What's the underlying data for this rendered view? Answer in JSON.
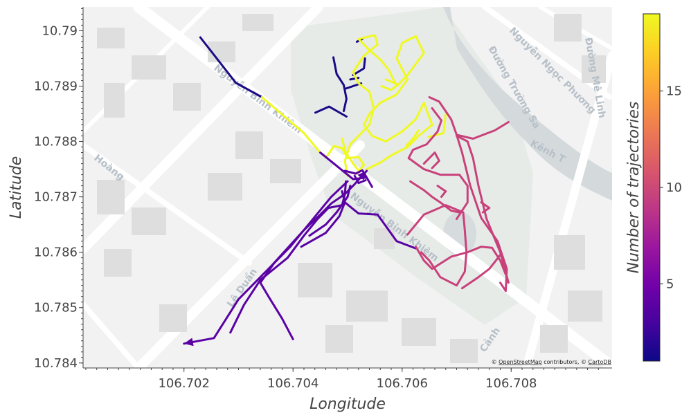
{
  "axes": {
    "xlabel": "Longitude",
    "ylabel": "Latitude",
    "xticks": [
      "106.702",
      "106.704",
      "106.706",
      "106.708"
    ],
    "yticks": [
      "10.784",
      "10.785",
      "10.786",
      "10.787",
      "10.788",
      "10.789",
      "10.79"
    ],
    "xlim": [
      106.70015,
      106.70985
    ],
    "ylim": [
      10.78391,
      10.79043
    ]
  },
  "colorbar": {
    "title": "Number of trajectories",
    "ticks": [
      "5",
      "10",
      "15"
    ],
    "min": 1,
    "max": 19
  },
  "attribution": {
    "prefix": "© ",
    "osm": "OpenStreetMap",
    "middle": " contributors, © ",
    "carto": "CartoDB"
  },
  "street_labels": [
    {
      "text": "Nguyễn Bỉnh Khiêm"
    },
    {
      "text": "Nguyễn Bỉnh Khiêm"
    },
    {
      "text": "Nguyễn Ngọc Phương"
    },
    {
      "text": "Đường Trường Sa"
    },
    {
      "text": "Đường Mê Linh"
    },
    {
      "text": "Kênh T"
    },
    {
      "text": "Lê Duẩn"
    },
    {
      "text": "Hoàng"
    },
    {
      "text": "Cảnh"
    }
  ],
  "colors": {
    "dark_blue": "#1a0a86",
    "purple": "#5a02a3",
    "pink": "#c8417a",
    "yellow": "#f0f921",
    "map_bg": "#f2f2f2",
    "park": "#e6ebe8",
    "water": "#d4dadc",
    "road": "#ffffff",
    "building": "#dedede"
  },
  "chart_data": {
    "type": "line",
    "title": "",
    "xlabel": "Longitude",
    "ylabel": "Latitude",
    "xlim": [
      106.70015,
      106.70985
    ],
    "ylim": [
      10.78391,
      10.79043
    ],
    "colorbar_label": "Number of trajectories",
    "series": [
      {
        "color": "#1a0a86",
        "arrow": false,
        "points": [
          [
            106.7023,
            10.78988
          ],
          [
            106.70295,
            10.78906
          ],
          [
            106.70343,
            10.7888
          ]
        ]
      },
      {
        "color": "#1a0a86",
        "arrow": false,
        "points": [
          [
            106.70474,
            10.78952
          ],
          [
            106.7048,
            10.78922
          ],
          [
            106.70493,
            10.78902
          ],
          [
            106.70498,
            10.78877
          ],
          [
            106.70493,
            10.78855
          ]
        ]
      },
      {
        "color": "#1a0a86",
        "arrow": false,
        "points": [
          [
            106.70441,
            10.78852
          ],
          [
            106.70466,
            10.78863
          ],
          [
            106.70498,
            10.78845
          ]
        ]
      },
      {
        "color": "#1a0a86",
        "arrow": false,
        "points": [
          [
            106.70505,
            10.78912
          ],
          [
            106.7052,
            10.78915
          ]
        ]
      },
      {
        "color": "#1a0a86",
        "arrow": false,
        "points": [
          [
            106.70495,
            10.78895
          ],
          [
            106.70525,
            10.78905
          ]
        ]
      },
      {
        "color": "#1a0a86",
        "arrow": false,
        "points": [
          [
            106.7051,
            10.7892
          ],
          [
            106.7053,
            10.78932
          ],
          [
            106.70532,
            10.7895
          ]
        ]
      },
      {
        "color": "#1a0a86",
        "arrow": false,
        "points": [
          [
            106.70517,
            10.7898
          ],
          [
            106.70527,
            10.78985
          ]
        ]
      },
      {
        "color": "#f0f921",
        "arrow": false,
        "points": [
          [
            106.70343,
            10.7888
          ],
          [
            106.7042,
            10.78815
          ],
          [
            106.7045,
            10.7878
          ]
        ]
      },
      {
        "color": "#f0f921",
        "arrow": false,
        "points": [
          [
            106.705,
            10.78738
          ],
          [
            106.70495,
            10.78765
          ],
          [
            106.70505,
            10.78795
          ],
          [
            106.7052,
            10.7881
          ],
          [
            106.7054,
            10.7883
          ],
          [
            106.70548,
            10.7886
          ],
          [
            106.7054,
            10.7889
          ],
          [
            106.7052,
            10.78905
          ],
          [
            106.7051,
            10.78925
          ],
          [
            106.7053,
            10.78955
          ],
          [
            106.70555,
            10.78975
          ],
          [
            106.7055,
            10.78992
          ],
          [
            106.7052,
            10.78985
          ],
          [
            106.7054,
            10.78965
          ],
          [
            106.7056,
            10.78948
          ],
          [
            106.70575,
            10.7893
          ],
          [
            106.7059,
            10.789
          ],
          [
            106.7061,
            10.7892
          ],
          [
            106.7064,
            10.7896
          ],
          [
            106.70625,
            10.7899
          ],
          [
            106.706,
            10.78978
          ],
          [
            106.7059,
            10.7895
          ],
          [
            106.7061,
            10.78912
          ],
          [
            106.7059,
            10.78885
          ],
          [
            106.7056,
            10.7887
          ],
          [
            106.7054,
            10.7885
          ],
          [
            106.7053,
            10.7883
          ],
          [
            106.70545,
            10.7881
          ],
          [
            106.7057,
            10.788
          ],
          [
            106.706,
            10.78818
          ],
          [
            106.70625,
            10.7884
          ],
          [
            106.7064,
            10.7887
          ],
          [
            106.70655,
            10.7883
          ],
          [
            106.7063,
            10.7881
          ],
          [
            106.7061,
            10.7879
          ],
          [
            106.7058,
            10.78775
          ],
          [
            106.7056,
            10.78762
          ],
          [
            106.70535,
            10.7875
          ]
        ]
      },
      {
        "color": "#f0f921",
        "arrow": false,
        "points": [
          [
            106.7046,
            10.7877
          ],
          [
            106.70475,
            10.78792
          ],
          [
            106.7049,
            10.78788
          ],
          [
            106.705,
            10.7877
          ],
          [
            106.7052,
            10.78772
          ],
          [
            106.7053,
            10.78758
          ],
          [
            106.70517,
            10.78742
          ]
        ]
      },
      {
        "color": "#f0f921",
        "arrow": false,
        "points": [
          [
            106.7049,
            10.78805
          ],
          [
            106.70497,
            10.7878
          ],
          [
            106.7051,
            10.7876
          ],
          [
            106.7052,
            10.78748
          ]
        ]
      },
      {
        "color": "#f0f921",
        "arrow": false,
        "points": [
          [
            106.70608,
            10.78793
          ],
          [
            106.7062,
            10.78805
          ],
          [
            106.7063,
            10.7882
          ]
        ]
      },
      {
        "color": "#f0f921",
        "arrow": false,
        "points": [
          [
            106.7068,
            10.7885
          ],
          [
            106.70676,
            10.78815
          ],
          [
            106.70648,
            10.78808
          ]
        ]
      },
      {
        "color": "#f0f921",
        "arrow": false,
        "points": [
          [
            106.7057,
            10.78912
          ],
          [
            106.70592,
            10.78903
          ],
          [
            106.7058,
            10.78893
          ],
          [
            106.70562,
            10.789
          ]
        ]
      },
      {
        "color": "#5a02a3",
        "arrow": true,
        "points": [
          [
            106.705,
            10.78728
          ],
          [
            106.7047,
            10.787
          ],
          [
            106.7042,
            10.7864
          ],
          [
            106.7036,
            10.78575
          ],
          [
            106.703,
            10.78515
          ],
          [
            106.70255,
            10.78445
          ],
          [
            106.702,
            10.78435
          ]
        ]
      },
      {
        "color": "#5a02a3",
        "arrow": false,
        "points": [
          [
            106.70285,
            10.78455
          ],
          [
            106.7031,
            10.78505
          ],
          [
            106.7034,
            10.7855
          ],
          [
            106.7039,
            10.7859
          ],
          [
            106.7042,
            10.7863
          ],
          [
            106.70445,
            10.7866
          ],
          [
            106.70465,
            10.7868
          ],
          [
            106.7049,
            10.78685
          ],
          [
            106.70495,
            10.78705
          ],
          [
            106.70497,
            10.78728
          ]
        ]
      },
      {
        "color": "#5a02a3",
        "arrow": true,
        "points": [
          [
            106.704,
            10.78443
          ],
          [
            106.7038,
            10.7848
          ],
          [
            106.70355,
            10.7852
          ],
          [
            106.7034,
            10.78545
          ],
          [
            106.70365,
            10.7858
          ],
          [
            106.70395,
            10.7861
          ],
          [
            106.7042,
            10.7864
          ],
          [
            106.7045,
            10.78668
          ],
          [
            106.7047,
            10.78688
          ],
          [
            106.70495,
            10.78705
          ],
          [
            106.70512,
            10.78722
          ],
          [
            106.70525,
            10.78736
          ],
          [
            106.70535,
            10.78747
          ]
        ]
      },
      {
        "color": "#5a02a3",
        "arrow": false,
        "points": [
          [
            106.7043,
            10.7863
          ],
          [
            106.7046,
            10.7865
          ],
          [
            106.7048,
            10.78672
          ],
          [
            106.705,
            10.787
          ],
          [
            106.70505,
            10.7872
          ]
        ]
      },
      {
        "color": "#5a02a3",
        "arrow": false,
        "points": [
          [
            106.70415,
            10.7861
          ],
          [
            106.7046,
            10.78635
          ],
          [
            106.70485,
            10.78665
          ],
          [
            106.70495,
            10.7869
          ],
          [
            106.7049,
            10.7871
          ]
        ]
      },
      {
        "color": "#5a02a3",
        "arrow": false,
        "points": [
          [
            106.7049,
            10.7871
          ],
          [
            106.70495,
            10.7869
          ],
          [
            106.7052,
            10.7867
          ],
          [
            106.70555,
            10.78668
          ],
          [
            106.7059,
            10.7862
          ],
          [
            106.70625,
            10.78607
          ]
        ]
      },
      {
        "color": "#5a02a3",
        "arrow": false,
        "points": [
          [
            106.7045,
            10.7878
          ],
          [
            106.7049,
            10.78748
          ],
          [
            106.7051,
            10.78732
          ],
          [
            106.70535,
            10.78735
          ],
          [
            106.70545,
            10.78718
          ]
        ]
      },
      {
        "color": "#5a02a3",
        "arrow": false,
        "points": [
          [
            106.70495,
            10.78747
          ],
          [
            106.70515,
            10.78742
          ],
          [
            106.70527,
            10.78748
          ],
          [
            106.70535,
            10.78735
          ]
        ]
      },
      {
        "color": "#5a02a3",
        "arrow": false,
        "points": [
          [
            106.70513,
            10.78738
          ],
          [
            106.7052,
            10.78725
          ],
          [
            106.70533,
            10.7873
          ]
        ]
      },
      {
        "color": "#c8417a",
        "arrow": false,
        "points": [
          [
            106.7065,
            10.7888
          ],
          [
            106.70668,
            10.78872
          ],
          [
            106.7069,
            10.7884
          ],
          [
            106.707,
            10.78812
          ],
          [
            106.7071,
            10.7878
          ],
          [
            106.70725,
            10.7872
          ],
          [
            106.70745,
            10.78662
          ],
          [
            106.70775,
            10.7862
          ],
          [
            106.70792,
            10.7857
          ],
          [
            106.7079,
            10.7853
          ],
          [
            106.7078,
            10.78545
          ]
        ]
      },
      {
        "color": "#c8417a",
        "arrow": false,
        "points": [
          [
            106.707,
            10.7881
          ],
          [
            106.7072,
            10.788
          ],
          [
            106.7073,
            10.7877
          ],
          [
            106.7074,
            10.7872
          ],
          [
            106.70755,
            10.7866
          ],
          [
            106.7078,
            10.786
          ],
          [
            106.70795,
            10.78545
          ]
        ]
      },
      {
        "color": "#c8417a",
        "arrow": false,
        "points": [
          [
            106.70795,
            10.78835
          ],
          [
            106.7077,
            10.7882
          ],
          [
            106.7073,
            10.78805
          ],
          [
            106.707,
            10.78812
          ]
        ]
      },
      {
        "color": "#c8417a",
        "arrow": false,
        "points": [
          [
            106.70655,
            10.7886
          ],
          [
            106.70672,
            10.78838
          ],
          [
            106.70665,
            10.78818
          ],
          [
            106.70645,
            10.78795
          ],
          [
            106.7062,
            10.78785
          ],
          [
            106.70612,
            10.7877
          ],
          [
            106.7064,
            10.7875
          ],
          [
            106.7067,
            10.7874
          ],
          [
            106.70705,
            10.7874
          ],
          [
            106.7072,
            10.7872
          ],
          [
            106.7072,
            10.7869
          ],
          [
            106.707,
            10.7866
          ]
        ]
      },
      {
        "color": "#c8417a",
        "arrow": false,
        "points": [
          [
            106.70615,
            10.78728
          ],
          [
            106.7064,
            10.78712
          ],
          [
            106.70655,
            10.787
          ],
          [
            106.7067,
            10.7869
          ],
          [
            106.7069,
            10.78675
          ],
          [
            106.70705,
            10.78672
          ]
        ]
      },
      {
        "color": "#c8417a",
        "arrow": false,
        "points": [
          [
            106.7061,
            10.78632
          ],
          [
            106.7064,
            10.78668
          ],
          [
            106.7068,
            10.78685
          ],
          [
            106.70712,
            10.78672
          ],
          [
            106.70715,
            10.7864
          ],
          [
            106.70718,
            10.786
          ],
          [
            106.70715,
            10.78565
          ],
          [
            106.707,
            10.7854
          ],
          [
            106.7067,
            10.78555
          ],
          [
            106.7065,
            10.78585
          ],
          [
            106.70635,
            10.786
          ]
        ]
      },
      {
        "color": "#c8417a",
        "arrow": false,
        "points": [
          [
            106.70625,
            10.7861
          ],
          [
            106.7064,
            10.78585
          ],
          [
            106.70655,
            10.7857
          ],
          [
            106.7069,
            10.78592
          ],
          [
            106.7072,
            10.786
          ],
          [
            106.70745,
            10.7861
          ],
          [
            106.70765,
            10.78608
          ],
          [
            106.7078,
            10.78585
          ],
          [
            106.7079,
            10.7856
          ]
        ]
      },
      {
        "color": "#c8417a",
        "arrow": false,
        "points": [
          [
            106.7071,
            10.78535
          ],
          [
            106.7074,
            10.78555
          ],
          [
            106.7076,
            10.7857
          ],
          [
            106.7078,
            10.78595
          ]
        ]
      },
      {
        "color": "#c8417a",
        "arrow": false,
        "points": [
          [
            106.7064,
            10.7876
          ],
          [
            106.7066,
            10.7878
          ],
          [
            106.70668,
            10.78765
          ],
          [
            106.70655,
            10.78752
          ]
        ]
      },
      {
        "color": "#c8417a",
        "arrow": false,
        "points": [
          [
            106.70745,
            10.7869
          ],
          [
            106.7076,
            10.7868
          ],
          [
            106.70748,
            10.78672
          ]
        ]
      },
      {
        "color": "#c8417a",
        "arrow": false,
        "points": [
          [
            106.70665,
            10.7872
          ],
          [
            106.7068,
            10.7871
          ],
          [
            106.70672,
            10.787
          ]
        ]
      }
    ]
  }
}
